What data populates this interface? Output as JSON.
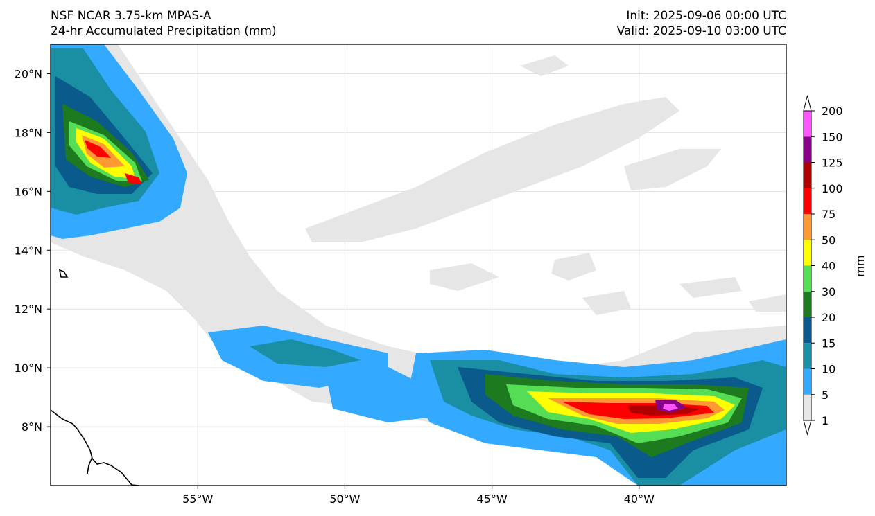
{
  "header": {
    "model": "NSF NCAR 3.75-km MPAS-A",
    "field": "24-hr Accumulated Precipitation (mm)",
    "init": "Init: 2025-09-06 00:00 UTC",
    "valid": "Valid: 2025-09-10 03:00 UTC"
  },
  "map": {
    "lon_range": [
      -60,
      -35
    ],
    "lat_range": [
      6,
      21
    ],
    "lon_ticks": [
      {
        "value": -55,
        "label": "55°W"
      },
      {
        "value": -50,
        "label": "50°W"
      },
      {
        "value": -45,
        "label": "45°W"
      },
      {
        "value": -40,
        "label": "40°W"
      }
    ],
    "lat_ticks": [
      {
        "value": 20,
        "label": "20°N"
      },
      {
        "value": 18,
        "label": "18°N"
      },
      {
        "value": 16,
        "label": "16°N"
      },
      {
        "value": 14,
        "label": "14°N"
      },
      {
        "value": 12,
        "label": "12°N"
      },
      {
        "value": 10,
        "label": "10°N"
      },
      {
        "value": 8,
        "label": "8°N"
      }
    ],
    "gridlines": true
  },
  "colorbar": {
    "unit": "mm",
    "levels": [
      {
        "label": "1",
        "color": "#e6e6e6"
      },
      {
        "label": "5",
        "color": "#33aaff"
      },
      {
        "label": "10",
        "color": "#1a8fa3"
      },
      {
        "label": "15",
        "color": "#0a5a8c"
      },
      {
        "label": "20",
        "color": "#1e7a1e"
      },
      {
        "label": "30",
        "color": "#55dd55"
      },
      {
        "label": "40",
        "color": "#ffff00"
      },
      {
        "label": "50",
        "color": "#ff9933"
      },
      {
        "label": "75",
        "color": "#ff0000"
      },
      {
        "label": "100",
        "color": "#b00000"
      },
      {
        "label": "125",
        "color": "#880088"
      },
      {
        "label": "150",
        "color": "#ff55ff"
      },
      {
        "label": "200",
        "color": ""
      }
    ],
    "under_color": "#ffffff",
    "over_color": "#ffffff"
  }
}
